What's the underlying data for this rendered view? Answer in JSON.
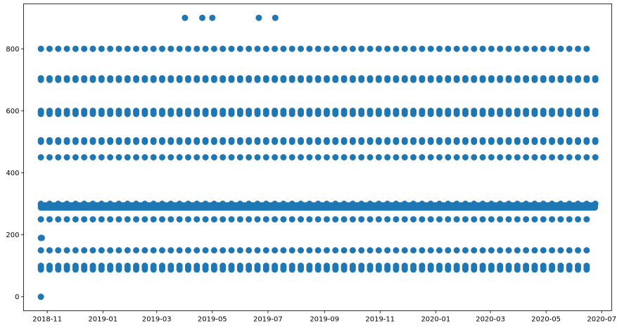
{
  "chart_data": {
    "type": "scatter",
    "title": "",
    "xlabel": "",
    "ylabel": "",
    "x_is_date": true,
    "xlim": [
      "2018-10-06",
      "2020-07-12"
    ],
    "ylim": [
      -45,
      945
    ],
    "grid": false,
    "legend": null,
    "marker_color": "#1f77b4",
    "x_ticks": [
      {
        "value": "2018-11-01",
        "label": "2018-11"
      },
      {
        "value": "2019-01-01",
        "label": "2019-01"
      },
      {
        "value": "2019-03-01",
        "label": "2019-03"
      },
      {
        "value": "2019-05-01",
        "label": "2019-05"
      },
      {
        "value": "2019-07-01",
        "label": "2019-07"
      },
      {
        "value": "2019-09-01",
        "label": "2019-09"
      },
      {
        "value": "2019-11-01",
        "label": "2019-11"
      },
      {
        "value": "2020-01-01",
        "label": "2020-01"
      },
      {
        "value": "2020-03-01",
        "label": "2020-03"
      },
      {
        "value": "2020-05-01",
        "label": "2020-05"
      },
      {
        "value": "2020-07-01",
        "label": "2020-07"
      }
    ],
    "y_ticks": [
      {
        "value": 0,
        "label": "0"
      },
      {
        "value": 200,
        "label": "200"
      },
      {
        "value": 400,
        "label": "400"
      },
      {
        "value": 600,
        "label": "600"
      },
      {
        "value": 800,
        "label": "800"
      }
    ],
    "series": [
      {
        "points": [
          [
            "2018-10-25",
            0
          ],
          [
            "2018-10-25",
            190
          ],
          [
            "2018-10-26",
            190
          ],
          [
            "2019-04-01",
            900
          ],
          [
            "2019-04-20",
            900
          ],
          [
            "2019-05-01",
            900
          ],
          [
            "2019-06-21",
            900
          ],
          [
            "2019-07-09",
            900
          ]
        ],
        "rows": [
          {
            "y": 800,
            "start": "2018-10-25",
            "end": "2020-06-15",
            "step_days": 9.5
          },
          {
            "y": 705,
            "start": "2018-10-25",
            "end": "2020-06-24",
            "step_days": 9.5
          },
          {
            "y": 700,
            "start": "2018-10-25",
            "end": "2020-06-24",
            "step_days": 9.5
          },
          {
            "y": 600,
            "start": "2018-10-25",
            "end": "2020-06-24",
            "step_days": 9.5
          },
          {
            "y": 595,
            "start": "2018-10-25",
            "end": "2020-06-24",
            "step_days": 9.5
          },
          {
            "y": 590,
            "start": "2018-10-25",
            "end": "2020-06-24",
            "step_days": 9.5
          },
          {
            "y": 505,
            "start": "2018-10-25",
            "end": "2020-06-24",
            "step_days": 9.5
          },
          {
            "y": 500,
            "start": "2018-10-25",
            "end": "2020-06-24",
            "step_days": 9.5
          },
          {
            "y": 450,
            "start": "2018-10-25",
            "end": "2020-06-24",
            "step_days": 9.5
          },
          {
            "y": 300,
            "start": "2018-10-25",
            "end": "2020-06-24",
            "step_days": 9.5
          },
          {
            "y": 295,
            "start": "2018-10-25",
            "end": "2020-06-24",
            "step_days": 1.5
          },
          {
            "y": 288,
            "start": "2018-10-25",
            "end": "2020-06-24",
            "step_days": 1.5
          },
          {
            "y": 250,
            "start": "2018-10-25",
            "end": "2020-06-15",
            "step_days": 9.5
          },
          {
            "y": 150,
            "start": "2018-10-25",
            "end": "2020-06-15",
            "step_days": 9.5
          },
          {
            "y": 100,
            "start": "2018-10-25",
            "end": "2020-06-15",
            "step_days": 9.5
          },
          {
            "y": 95,
            "start": "2018-10-25",
            "end": "2020-06-15",
            "step_days": 9.5
          },
          {
            "y": 88,
            "start": "2018-10-25",
            "end": "2020-06-15",
            "step_days": 9.5
          }
        ]
      }
    ]
  }
}
